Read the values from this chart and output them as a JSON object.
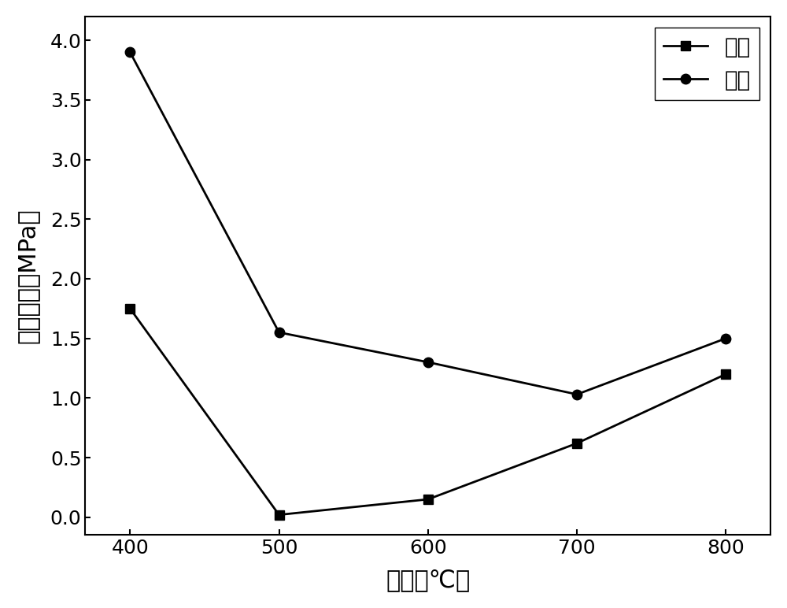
{
  "x": [
    400,
    500,
    600,
    700,
    800
  ],
  "daqi_y": [
    1.75,
    0.02,
    0.15,
    0.62,
    1.2
  ],
  "zhenkong_y": [
    3.9,
    1.55,
    1.3,
    1.03,
    1.5
  ],
  "xlabel": "温度（℃）",
  "ylabel": "抗弯强度（MPa）",
  "daqi_label": "大气",
  "zhenkong_label": "真空",
  "xlim": [
    370,
    830
  ],
  "ylim": [
    -0.15,
    4.2
  ],
  "yticks": [
    0.0,
    0.5,
    1.0,
    1.5,
    2.0,
    2.5,
    3.0,
    3.5,
    4.0
  ],
  "xticks": [
    400,
    500,
    600,
    700,
    800
  ],
  "line_color": "#000000",
  "marker_square": "s",
  "marker_circle": "o",
  "linewidth": 2.0,
  "markersize": 9,
  "xlabel_fontsize": 22,
  "ylabel_fontsize": 22,
  "tick_fontsize": 18,
  "legend_fontsize": 20,
  "background_color": "#ffffff"
}
